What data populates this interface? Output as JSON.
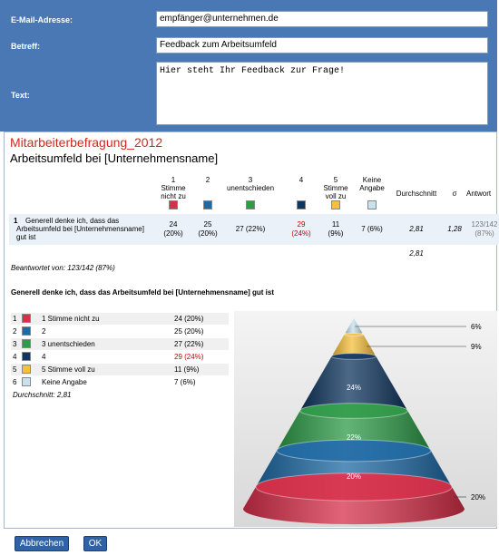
{
  "form": {
    "fields": [
      {
        "label": "E-Mail-Adresse:",
        "value": "empfänger@unternehmen.de"
      },
      {
        "label": "Betreff:",
        "value": "Feedback zum Arbeitsumfeld"
      },
      {
        "label": "Text:",
        "value": "Hier steht Ihr Feedback zur Frage!"
      }
    ]
  },
  "survey": {
    "title": "Mitarbeiterbefragung_2012",
    "subtitle": "Arbeitsumfeld bei [Unternehmensname]",
    "colors": [
      "#d6304a",
      "#1f6aa5",
      "#2e9b48",
      "#10365f",
      "#f5c03e",
      "#c7e2ee"
    ],
    "columns": [
      "1\nStimme\nnicht zu",
      "2",
      "3\nunentschieden",
      "4",
      "5\nStimme\nvoll zu",
      "Keine\nAngabe",
      "Durchschnitt",
      "σ",
      "Antwort"
    ],
    "row": {
      "number": "1",
      "question": "Generell denke ich, dass das Arbeitsumfeld bei [Unternehmensname] gut ist",
      "cells": [
        "24\n(20%)",
        "25\n(20%)",
        "27 (22%)",
        "29\n(24%)",
        "11\n(9%)",
        "7 (6%)",
        "2,81",
        "1,28",
        "123/142\n(87%)"
      ],
      "highlight_index": 3,
      "highlight_color": "#cc0000"
    },
    "average_below": "2,81",
    "answered": "Beantwortet von: 123/142 (87%)",
    "chart_title": "Generell denke ich, dass das Arbeitsumfeld bei [Unternehmensname] gut ist",
    "legend": [
      {
        "number": "1",
        "label": "1 Stimme nicht zu",
        "value": "24 (20%)"
      },
      {
        "number": "2",
        "label": "2",
        "value": "25 (20%)"
      },
      {
        "number": "3",
        "label": "3 unentschieden",
        "value": "27 (22%)"
      },
      {
        "number": "4",
        "label": "4",
        "value": "29 (24%)"
      },
      {
        "number": "5",
        "label": "5 Stimme voll zu",
        "value": "11 (9%)"
      },
      {
        "number": "6",
        "label": "Keine Angabe",
        "value": "7 (6%)"
      }
    ],
    "legend_average": "Durchschnitt: 2,81",
    "pyramid_labels": [
      "6%",
      "9%",
      "24%",
      "22%",
      "20%",
      "20%"
    ]
  },
  "buttons": [
    "Abbrechen",
    "OK"
  ]
}
